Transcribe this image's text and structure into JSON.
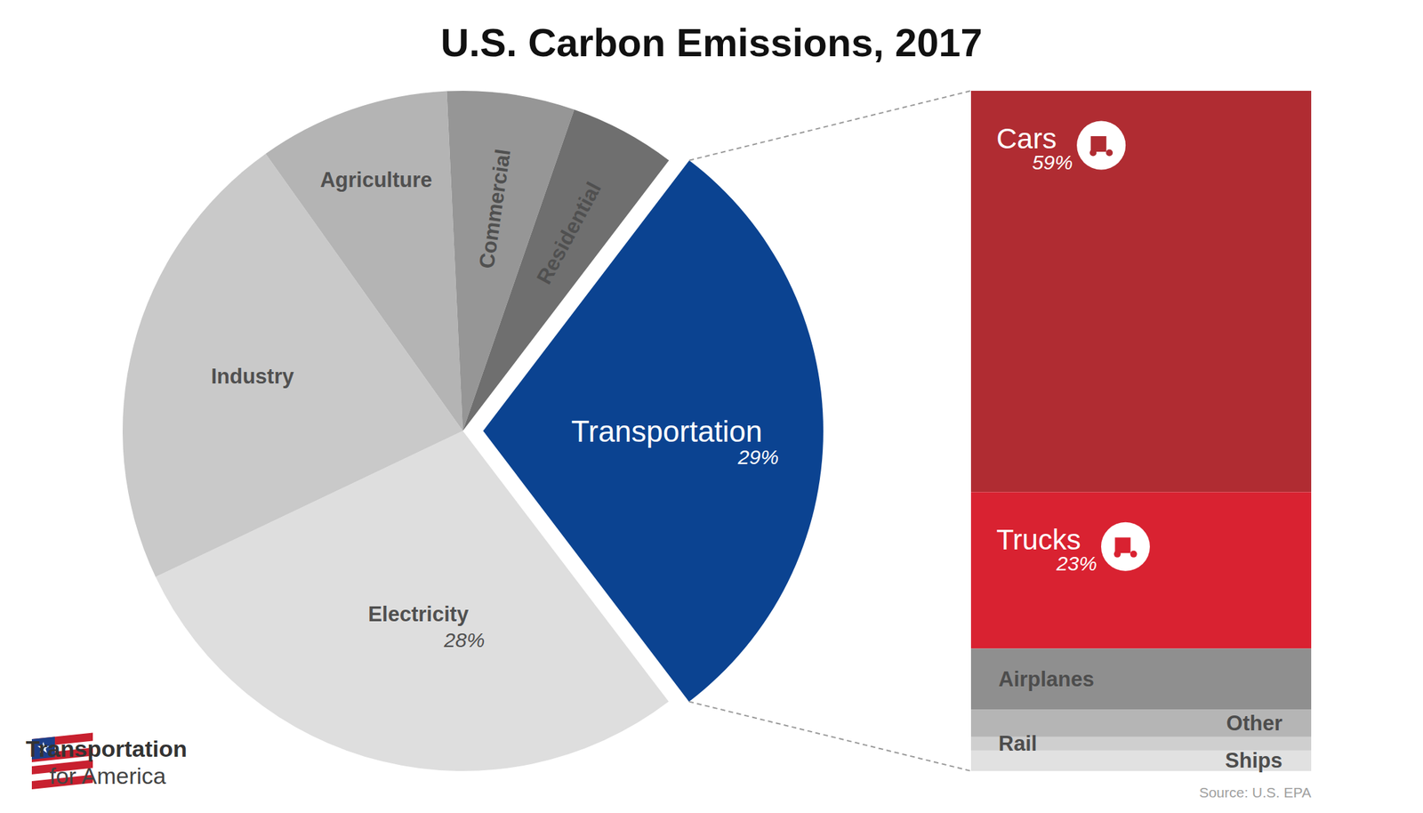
{
  "chart_data": [
    {
      "type": "pie",
      "title": "U.S. Carbon Emissions, 2017",
      "categories": [
        "Transportation",
        "Electricity",
        "Industry",
        "Agriculture",
        "Commercial",
        "Residential"
      ],
      "values": [
        29,
        28,
        22,
        9,
        6,
        5
      ],
      "value_labels": [
        "29%",
        "28%",
        null,
        null,
        null,
        null
      ],
      "colors": [
        "#0b4391",
        "#dedede",
        "#c9c9c9",
        "#b4b4b4",
        "#969696",
        "#6f6f6f"
      ],
      "data_labels": true,
      "annotations": [
        "Transportation",
        "for America"
      ]
    },
    {
      "type": "bar",
      "stacked": true,
      "categories": [
        "Cars",
        "Trucks",
        "Airplanes",
        "Other",
        "Rail",
        "Ships"
      ],
      "values": [
        59,
        23,
        9,
        4,
        2,
        3
      ],
      "value_labels": [
        "59%",
        "23%",
        null,
        null,
        null,
        null
      ],
      "colors": [
        "#b02c32",
        "#d92231",
        "#8f8f8f",
        "#b5b5b5",
        "#cfcfcf",
        "#e1e1e1"
      ],
      "data_labels": true,
      "tick_labels": false,
      "annotations": [
        "Source: U.S. EPA"
      ]
    }
  ]
}
